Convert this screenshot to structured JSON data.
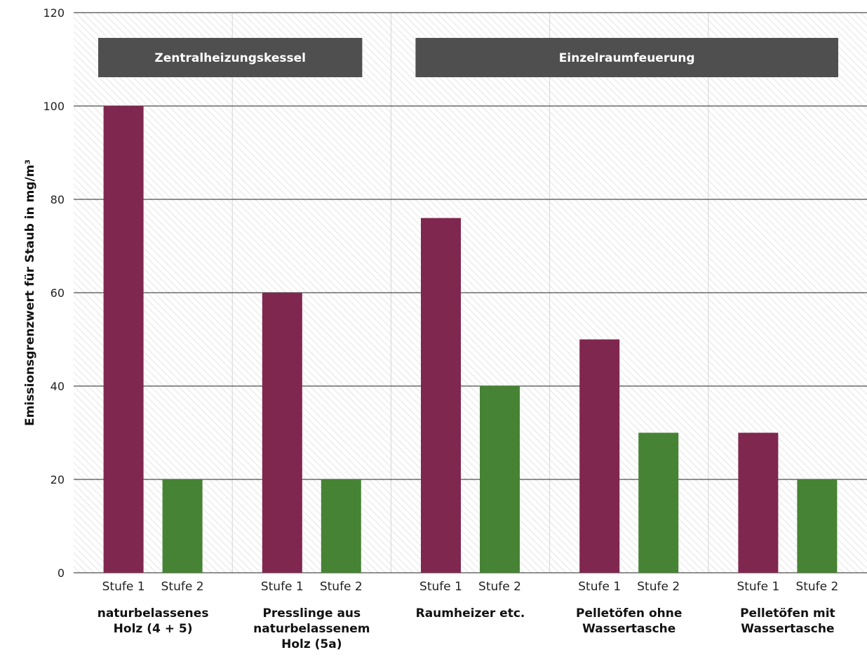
{
  "chart_data": {
    "type": "bar",
    "ylabel": "Emissionsgrenzwert für Staub in mg/m³",
    "ylim": [
      0,
      120
    ],
    "yticks": [
      0,
      20,
      40,
      60,
      80,
      100,
      120
    ],
    "grid": true,
    "categories": [
      [
        "naturbelassenes",
        "Holz (4 + 5)"
      ],
      [
        "Presslinge aus",
        "naturbelassenem",
        "Holz (5a)"
      ],
      [
        "Raumheizer etc."
      ],
      [
        "Pelletöfen ohne",
        "Wassertasche"
      ],
      [
        "Pelletöfen mit",
        "Wassertasche"
      ]
    ],
    "series": [
      {
        "name": "Stufe 1",
        "color": "#7f274f",
        "values": [
          100,
          60,
          76,
          50,
          30
        ]
      },
      {
        "name": "Stufe 2",
        "color": "#468334",
        "values": [
          20,
          20,
          40,
          30,
          20
        ]
      }
    ],
    "groups": [
      {
        "label": "Zentralheizungskessel",
        "categories": [
          0,
          1
        ]
      },
      {
        "label": "Einzelraumfeuerung",
        "categories": [
          2,
          3,
          4
        ]
      }
    ],
    "colors": {
      "banner": "#4f4f4f",
      "grid": "#222222",
      "hatch": "#e6e6e6"
    }
  }
}
